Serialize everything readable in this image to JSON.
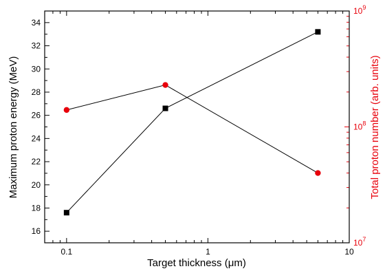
{
  "chart_data": {
    "type": "line",
    "xlabel": "Target thickness (μm)",
    "ylabel": "Maximum proton energy (MeV)",
    "y2label": "Total proton number (arb. units)",
    "xscale": "log",
    "xlim": [
      0.07,
      10
    ],
    "ylim": [
      15,
      35
    ],
    "y2scale": "log",
    "y2lim": [
      10000000,
      1000000000
    ],
    "x_ticks": [
      {
        "value": 0.1,
        "label": "0.1"
      },
      {
        "value": 1,
        "label": "1"
      },
      {
        "value": 10,
        "label": "10"
      }
    ],
    "y_ticks": [
      {
        "value": 16,
        "label": "16"
      },
      {
        "value": 18,
        "label": "18"
      },
      {
        "value": 20,
        "label": "20"
      },
      {
        "value": 22,
        "label": "22"
      },
      {
        "value": 24,
        "label": "24"
      },
      {
        "value": 26,
        "label": "26"
      },
      {
        "value": 28,
        "label": "28"
      },
      {
        "value": 30,
        "label": "30"
      },
      {
        "value": 32,
        "label": "32"
      },
      {
        "value": 34,
        "label": "34"
      }
    ],
    "y2_ticks": [
      {
        "value": 10000000,
        "base": "10",
        "exp": "7"
      },
      {
        "value": 100000000,
        "base": "10",
        "exp": "8"
      },
      {
        "value": 1000000000,
        "base": "10",
        "exp": "9"
      }
    ],
    "series": [
      {
        "axis": "left",
        "color": "#000000",
        "marker": "square",
        "x": [
          0.1,
          0.5,
          6
        ],
        "y": [
          17.6,
          26.6,
          33.2
        ]
      },
      {
        "axis": "right",
        "color": "#e8000b",
        "marker": "circle",
        "x": [
          0.1,
          0.5,
          6
        ],
        "y": [
          140000000,
          230000000,
          40000000
        ]
      }
    ],
    "colors": {
      "left_axis": "#000000",
      "right_axis": "#e8000b"
    }
  }
}
